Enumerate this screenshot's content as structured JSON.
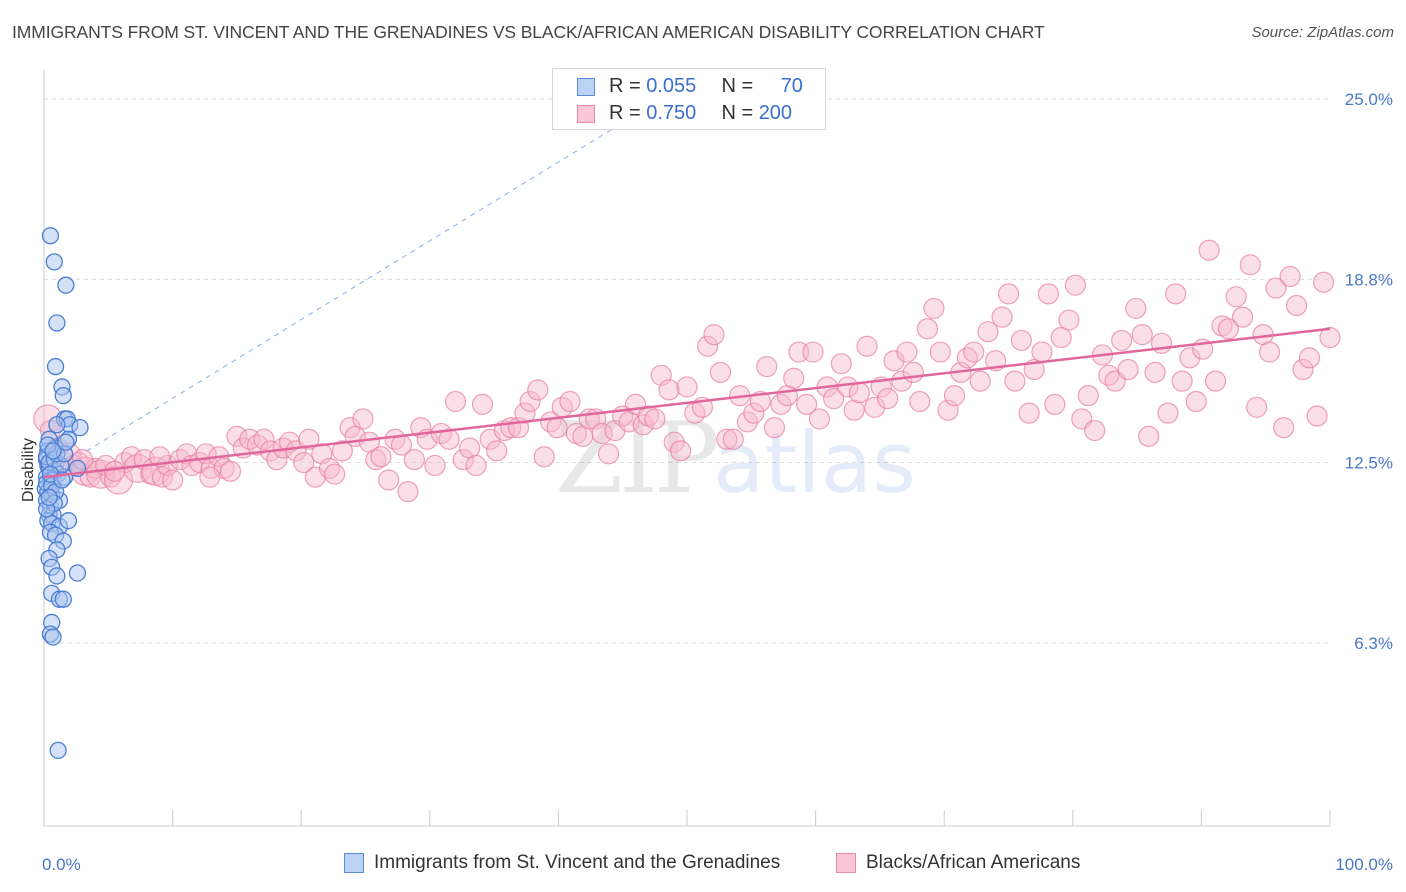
{
  "title": "IMMIGRANTS FROM ST. VINCENT AND THE GRENADINES VS BLACK/AFRICAN AMERICAN DISABILITY CORRELATION CHART",
  "source": "Source: ZipAtlas.com",
  "legend_top": {
    "rows": [
      {
        "r_label": "R = ",
        "r_value": "0.055",
        "n_label": "N = ",
        "n_value": "70"
      },
      {
        "r_label": "R = ",
        "r_value": "0.750",
        "n_label": "N = ",
        "n_value": "200"
      }
    ]
  },
  "colors": {
    "blue_fill": "#aac4ee",
    "blue_stroke": "#4a7fd6",
    "pink_fill": "#f6b9cd",
    "pink_stroke": "#e77aa0",
    "pink_line": "#e0679a",
    "blue_line": "#8aaee6",
    "tick": "#4a78c8"
  },
  "chart_data": {
    "type": "scatter",
    "title": "IMMIGRANTS FROM ST. VINCENT AND THE GRENADINES VS BLACK/AFRICAN AMERICAN DISABILITY CORRELATION CHART",
    "xlabel": "",
    "ylabel": "Disability",
    "xlim": [
      0,
      100
    ],
    "ylim": [
      0,
      26
    ],
    "x_tick_labels": [
      "0.0%",
      "100.0%"
    ],
    "y_ticks": [
      6.3,
      12.5,
      18.8,
      25.0
    ],
    "y_tick_labels": [
      "6.3%",
      "12.5%",
      "18.8%",
      "25.0%"
    ],
    "grid": "horizontal dashed",
    "legend_position": "top-center and bottom",
    "watermark": "ZIPatlas",
    "series": [
      {
        "name": "Immigrants from St. Vincent and the Grenadines",
        "r": 0.055,
        "n": 70,
        "trend": {
          "x": [
            0,
            48
          ],
          "y": [
            12.0,
            25.0
          ],
          "style": "dashed"
        },
        "points": [
          [
            0.5,
            20.3
          ],
          [
            0.8,
            19.4
          ],
          [
            1.7,
            18.6
          ],
          [
            1.0,
            17.3
          ],
          [
            0.9,
            15.8
          ],
          [
            1.4,
            15.1
          ],
          [
            1.5,
            14.8
          ],
          [
            1.6,
            14.0
          ],
          [
            1.8,
            14.0
          ],
          [
            2.0,
            13.8
          ],
          [
            1.0,
            13.8
          ],
          [
            2.8,
            13.7
          ],
          [
            0.4,
            13.3
          ],
          [
            1.9,
            13.3
          ],
          [
            0.9,
            13.0
          ],
          [
            0.3,
            12.9
          ],
          [
            0.2,
            12.6
          ],
          [
            0.3,
            12.4
          ],
          [
            0.4,
            12.3
          ],
          [
            0.9,
            12.2
          ],
          [
            1.1,
            12.1
          ],
          [
            2.6,
            12.3
          ],
          [
            0.2,
            12.0
          ],
          [
            0.5,
            11.9
          ],
          [
            0.7,
            11.9
          ],
          [
            1.6,
            12.0
          ],
          [
            0.1,
            11.6
          ],
          [
            0.3,
            11.5
          ],
          [
            0.6,
            11.4
          ],
          [
            0.2,
            11.2
          ],
          [
            0.5,
            11.0
          ],
          [
            1.2,
            11.2
          ],
          [
            0.4,
            10.7
          ],
          [
            0.7,
            10.7
          ],
          [
            0.3,
            10.5
          ],
          [
            0.6,
            10.4
          ],
          [
            1.2,
            10.3
          ],
          [
            1.9,
            10.5
          ],
          [
            0.5,
            10.1
          ],
          [
            0.9,
            10.0
          ],
          [
            1.5,
            9.8
          ],
          [
            1.0,
            9.5
          ],
          [
            0.4,
            9.2
          ],
          [
            0.6,
            8.9
          ],
          [
            1.0,
            8.6
          ],
          [
            2.6,
            8.7
          ],
          [
            0.6,
            8.0
          ],
          [
            1.2,
            7.8
          ],
          [
            1.5,
            7.8
          ],
          [
            0.6,
            7.0
          ],
          [
            0.5,
            6.6
          ],
          [
            0.7,
            6.5
          ],
          [
            1.1,
            2.6
          ],
          [
            0.2,
            12.7
          ],
          [
            0.4,
            12.5
          ],
          [
            0.8,
            12.6
          ],
          [
            1.3,
            12.4
          ],
          [
            0.2,
            11.8
          ],
          [
            0.6,
            11.7
          ],
          [
            0.9,
            11.5
          ],
          [
            1.0,
            12.8
          ],
          [
            0.3,
            13.1
          ],
          [
            1.6,
            12.8
          ],
          [
            0.8,
            11.1
          ],
          [
            0.5,
            12.1
          ],
          [
            0.2,
            10.9
          ],
          [
            1.4,
            11.9
          ],
          [
            0.7,
            12.9
          ],
          [
            0.4,
            11.3
          ],
          [
            1.7,
            13.2
          ]
        ]
      },
      {
        "name": "Blacks/African Americans",
        "r": 0.75,
        "n": 200,
        "trend": {
          "x": [
            0,
            100
          ],
          "y": [
            12.0,
            17.1
          ],
          "style": "solid"
        },
        "points": [
          [
            0.3,
            14.0
          ],
          [
            0.5,
            13.6
          ],
          [
            1.1,
            13.0
          ],
          [
            1.8,
            12.7
          ],
          [
            2.3,
            12.4
          ],
          [
            2.7,
            12.5
          ],
          [
            3.2,
            12.2
          ],
          [
            3.6,
            12.0
          ],
          [
            4.0,
            12.3
          ],
          [
            4.4,
            12.1
          ],
          [
            4.8,
            12.4
          ],
          [
            5.2,
            12.0
          ],
          [
            5.8,
            11.9
          ],
          [
            6.3,
            12.5
          ],
          [
            6.8,
            12.7
          ],
          [
            7.3,
            12.3
          ],
          [
            7.8,
            12.6
          ],
          [
            8.3,
            12.1
          ],
          [
            8.7,
            12.2
          ],
          [
            9.2,
            12.0
          ],
          [
            9.6,
            12.4
          ],
          [
            10.0,
            11.9
          ],
          [
            10.6,
            12.6
          ],
          [
            11.1,
            12.8
          ],
          [
            11.5,
            12.4
          ],
          [
            12.1,
            12.5
          ],
          [
            12.6,
            12.8
          ],
          [
            13.0,
            12.3
          ],
          [
            13.6,
            12.7
          ],
          [
            14.0,
            12.3
          ],
          [
            14.5,
            12.2
          ],
          [
            15.0,
            13.4
          ],
          [
            15.5,
            13.0
          ],
          [
            16.0,
            13.3
          ],
          [
            16.6,
            13.1
          ],
          [
            17.1,
            13.3
          ],
          [
            17.6,
            12.9
          ],
          [
            18.1,
            12.6
          ],
          [
            18.6,
            13.0
          ],
          [
            19.1,
            13.2
          ],
          [
            19.6,
            12.9
          ],
          [
            20.2,
            12.5
          ],
          [
            20.6,
            13.3
          ],
          [
            21.1,
            12.0
          ],
          [
            21.6,
            12.8
          ],
          [
            22.2,
            12.3
          ],
          [
            22.6,
            12.1
          ],
          [
            23.2,
            12.9
          ],
          [
            23.8,
            13.7
          ],
          [
            24.2,
            13.4
          ],
          [
            24.8,
            14.0
          ],
          [
            25.3,
            13.2
          ],
          [
            25.8,
            12.6
          ],
          [
            26.2,
            12.7
          ],
          [
            26.8,
            11.9
          ],
          [
            27.3,
            13.3
          ],
          [
            27.8,
            13.1
          ],
          [
            28.3,
            11.5
          ],
          [
            28.8,
            12.6
          ],
          [
            29.3,
            13.7
          ],
          [
            29.8,
            13.3
          ],
          [
            30.4,
            12.4
          ],
          [
            30.9,
            13.5
          ],
          [
            31.5,
            13.3
          ],
          [
            32.0,
            14.6
          ],
          [
            32.6,
            12.6
          ],
          [
            33.1,
            13.0
          ],
          [
            33.6,
            12.4
          ],
          [
            34.1,
            14.5
          ],
          [
            34.7,
            13.3
          ],
          [
            35.2,
            12.9
          ],
          [
            35.8,
            13.6
          ],
          [
            36.3,
            13.7
          ],
          [
            36.9,
            13.7
          ],
          [
            37.4,
            14.2
          ],
          [
            37.8,
            14.6
          ],
          [
            38.4,
            15.0
          ],
          [
            38.9,
            12.7
          ],
          [
            39.4,
            13.9
          ],
          [
            39.9,
            13.7
          ],
          [
            40.3,
            14.4
          ],
          [
            40.9,
            14.6
          ],
          [
            41.4,
            13.5
          ],
          [
            41.9,
            13.4
          ],
          [
            42.4,
            14.0
          ],
          [
            42.9,
            14.0
          ],
          [
            43.4,
            13.5
          ],
          [
            43.9,
            12.8
          ],
          [
            44.4,
            13.6
          ],
          [
            45.0,
            14.1
          ],
          [
            45.5,
            13.9
          ],
          [
            46.0,
            14.5
          ],
          [
            46.6,
            13.8
          ],
          [
            47.0,
            14.1
          ],
          [
            47.5,
            14.0
          ],
          [
            48.0,
            15.5
          ],
          [
            48.6,
            15.0
          ],
          [
            49.0,
            13.2
          ],
          [
            49.5,
            12.9
          ],
          [
            50.0,
            15.1
          ],
          [
            50.6,
            14.2
          ],
          [
            51.2,
            14.4
          ],
          [
            51.6,
            16.5
          ],
          [
            52.1,
            16.9
          ],
          [
            52.6,
            15.6
          ],
          [
            53.1,
            13.3
          ],
          [
            53.6,
            13.3
          ],
          [
            54.1,
            14.8
          ],
          [
            54.7,
            13.9
          ],
          [
            55.2,
            14.2
          ],
          [
            55.7,
            14.6
          ],
          [
            56.2,
            15.8
          ],
          [
            56.8,
            13.7
          ],
          [
            57.3,
            14.5
          ],
          [
            57.8,
            14.8
          ],
          [
            58.3,
            15.4
          ],
          [
            58.7,
            16.3
          ],
          [
            59.3,
            14.5
          ],
          [
            59.8,
            16.3
          ],
          [
            60.3,
            14.0
          ],
          [
            60.9,
            15.1
          ],
          [
            61.4,
            14.7
          ],
          [
            62.0,
            15.9
          ],
          [
            62.5,
            15.1
          ],
          [
            63.0,
            14.3
          ],
          [
            63.4,
            14.9
          ],
          [
            64.0,
            16.5
          ],
          [
            64.6,
            14.4
          ],
          [
            65.1,
            15.1
          ],
          [
            65.6,
            14.7
          ],
          [
            66.1,
            16.0
          ],
          [
            66.7,
            15.3
          ],
          [
            67.1,
            16.3
          ],
          [
            67.6,
            15.6
          ],
          [
            68.1,
            14.6
          ],
          [
            68.7,
            17.1
          ],
          [
            69.2,
            17.8
          ],
          [
            69.7,
            16.3
          ],
          [
            70.3,
            14.3
          ],
          [
            70.8,
            14.8
          ],
          [
            71.3,
            15.6
          ],
          [
            71.8,
            16.1
          ],
          [
            72.3,
            16.3
          ],
          [
            72.8,
            15.3
          ],
          [
            73.4,
            17.0
          ],
          [
            74.0,
            16.0
          ],
          [
            74.5,
            17.5
          ],
          [
            75.0,
            18.3
          ],
          [
            75.5,
            15.3
          ],
          [
            76.0,
            16.7
          ],
          [
            76.6,
            14.2
          ],
          [
            77.0,
            15.7
          ],
          [
            77.6,
            16.3
          ],
          [
            78.1,
            18.3
          ],
          [
            78.6,
            14.5
          ],
          [
            79.1,
            16.8
          ],
          [
            79.7,
            17.4
          ],
          [
            80.2,
            18.6
          ],
          [
            80.7,
            14.0
          ],
          [
            81.2,
            14.8
          ],
          [
            81.7,
            13.6
          ],
          [
            82.3,
            16.2
          ],
          [
            82.8,
            15.5
          ],
          [
            83.3,
            15.3
          ],
          [
            83.8,
            16.7
          ],
          [
            84.3,
            15.7
          ],
          [
            84.9,
            17.8
          ],
          [
            85.4,
            16.9
          ],
          [
            85.9,
            13.4
          ],
          [
            86.4,
            15.6
          ],
          [
            86.9,
            16.6
          ],
          [
            87.4,
            14.2
          ],
          [
            88.0,
            18.3
          ],
          [
            88.5,
            15.3
          ],
          [
            89.1,
            16.1
          ],
          [
            89.6,
            14.6
          ],
          [
            90.1,
            16.4
          ],
          [
            90.6,
            19.8
          ],
          [
            91.1,
            15.3
          ],
          [
            91.6,
            17.2
          ],
          [
            92.1,
            17.1
          ],
          [
            92.7,
            18.2
          ],
          [
            93.2,
            17.5
          ],
          [
            93.8,
            19.3
          ],
          [
            94.3,
            14.4
          ],
          [
            94.8,
            16.9
          ],
          [
            95.3,
            16.3
          ],
          [
            95.8,
            18.5
          ],
          [
            96.4,
            13.7
          ],
          [
            96.9,
            18.9
          ],
          [
            97.4,
            17.9
          ],
          [
            97.9,
            15.7
          ],
          [
            98.4,
            16.1
          ],
          [
            99.0,
            14.1
          ],
          [
            99.5,
            18.7
          ],
          [
            100.0,
            16.8
          ],
          [
            3.0,
            12.6
          ],
          [
            5.5,
            12.2
          ],
          [
            9.0,
            12.7
          ],
          [
            12.9,
            12.0
          ]
        ]
      }
    ]
  },
  "legend_bottom": [
    {
      "label": "Immigrants from St. Vincent and the Grenadines"
    },
    {
      "label": "Blacks/African Americans"
    }
  ]
}
